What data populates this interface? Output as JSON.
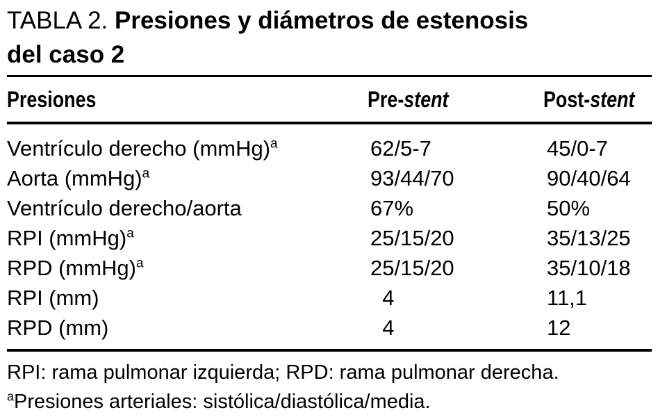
{
  "table": {
    "label": "TABLA 2.",
    "title_line1": "Presiones y diámetros de estenosis",
    "title_line2": "del caso 2",
    "header": {
      "presiones": "Presiones",
      "pre_prefix": "Pre-",
      "pre_italic": "stent",
      "post_prefix": "Post-",
      "post_italic": "stent"
    },
    "rows": [
      {
        "label": "Ventrículo derecho (mmHg)",
        "sup": "a",
        "pre": "62/5-7",
        "post": "45/0-7"
      },
      {
        "label": "Aorta (mmHg)",
        "sup": "a",
        "pre": "93/44/70",
        "post": "90/40/64"
      },
      {
        "label": "Ventrículo derecho/aorta",
        "sup": "",
        "pre": "67%",
        "post": "50%"
      },
      {
        "label": "RPI (mmHg)",
        "sup": "a",
        "pre": "25/15/20",
        "post": "35/13/25"
      },
      {
        "label": "RPD (mmHg)",
        "sup": "a",
        "pre": "25/15/20",
        "post": "35/10/18"
      },
      {
        "label": "RPI (mm)",
        "sup": "",
        "pre": "  4",
        "post": "11,1"
      },
      {
        "label": "RPD (mm)",
        "sup": "",
        "pre": "  4",
        "post": "12"
      }
    ],
    "footnotes": {
      "line1": "RPI: rama pulmonar izquierda; RPD: rama pulmonar derecha.",
      "line2_sup": "a",
      "line2": "Presiones arteriales: sistólica/diastólica/media."
    }
  },
  "colors": {
    "background": "#ffffff",
    "text": "#000000",
    "rule": "#000000"
  }
}
